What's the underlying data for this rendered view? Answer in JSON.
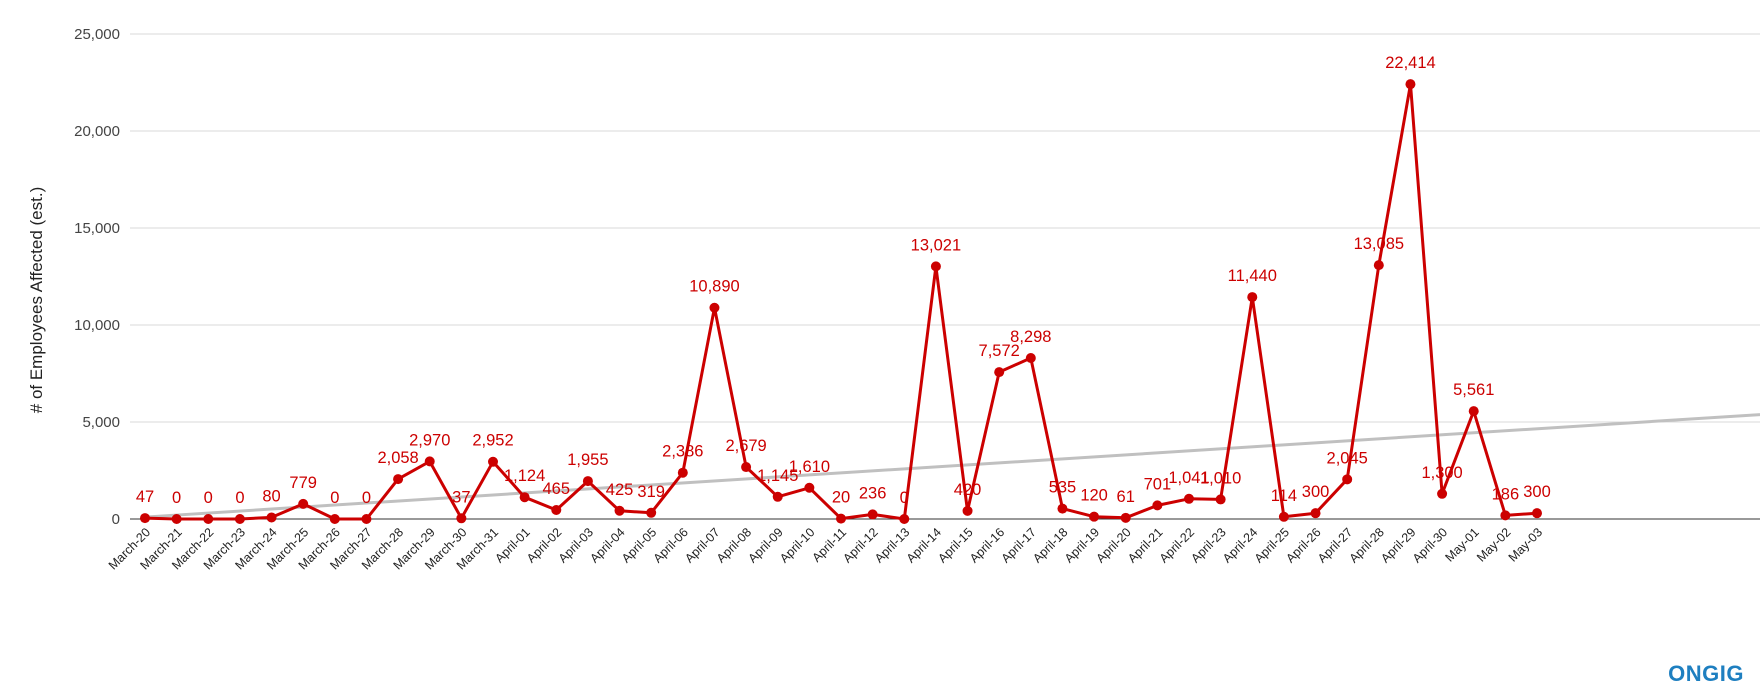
{
  "brand": "ONGIG",
  "colors": {
    "series": "#cc0000",
    "trend": "#c0c0c0",
    "grid": "#d9d9d9",
    "brand": "#1e7fc0"
  },
  "chart_data": {
    "type": "line",
    "title": "",
    "xlabel": "",
    "ylabel": "# of Employees Affected (est.)",
    "ylim": [
      0,
      25000
    ],
    "yticks": [
      0,
      5000,
      10000,
      15000,
      20000,
      25000
    ],
    "ytick_labels": [
      "0",
      "5,000",
      "10,000",
      "15,000",
      "20,000",
      "25,000"
    ],
    "grid": true,
    "categories": [
      "March-20",
      "March-21",
      "March-22",
      "March-23",
      "March-24",
      "March-25",
      "March-26",
      "March-27",
      "March-28",
      "March-29",
      "March-30",
      "March-31",
      "April-01",
      "April-02",
      "April-03",
      "April-04",
      "April-05",
      "April-06",
      "April-07",
      "April-08",
      "April-09",
      "April-10",
      "April-11",
      "April-12",
      "April-13",
      "April-14",
      "April-15",
      "April-16",
      "April-17",
      "April-18",
      "April-19",
      "April-20",
      "April-21",
      "April-22",
      "April-23",
      "April-24",
      "April-25",
      "April-26",
      "April-27",
      "April-28",
      "April-29",
      "April-30",
      "May-01",
      "May-02",
      "May-03"
    ],
    "series": [
      {
        "name": "# of Employees Affected (est.)",
        "values": [
          47,
          0,
          0,
          0,
          80,
          779,
          0,
          0,
          2058,
          2970,
          37,
          2952,
          1124,
          465,
          1955,
          425,
          319,
          2386,
          10890,
          2679,
          1145,
          1610,
          20,
          236,
          0,
          13021,
          420,
          7572,
          8298,
          535,
          120,
          61,
          701,
          1041,
          1010,
          11440,
          114,
          300,
          2045,
          13085,
          22414,
          1300,
          5561,
          186,
          300
        ],
        "labels": [
          "47",
          "0",
          "0",
          "0",
          "80",
          "779",
          "0",
          "0",
          "2,058",
          "2,970",
          "37",
          "2,952",
          "1,124",
          "465",
          "1,955",
          "425",
          "319",
          "2,386",
          "10,890",
          "2,679",
          "1,145",
          "1,610",
          "20",
          "236",
          "0",
          "13,021",
          "420",
          "7,572",
          "8,298",
          "535",
          "120",
          "61",
          "701",
          "1,041",
          "1,010",
          "11,440",
          "114",
          "300",
          "2,045",
          "13,085",
          "22,414",
          "1,300",
          "5,561",
          "186",
          "300"
        ]
      }
    ],
    "trendline": {
      "type": "linear",
      "start": 100,
      "end": 5380
    }
  }
}
